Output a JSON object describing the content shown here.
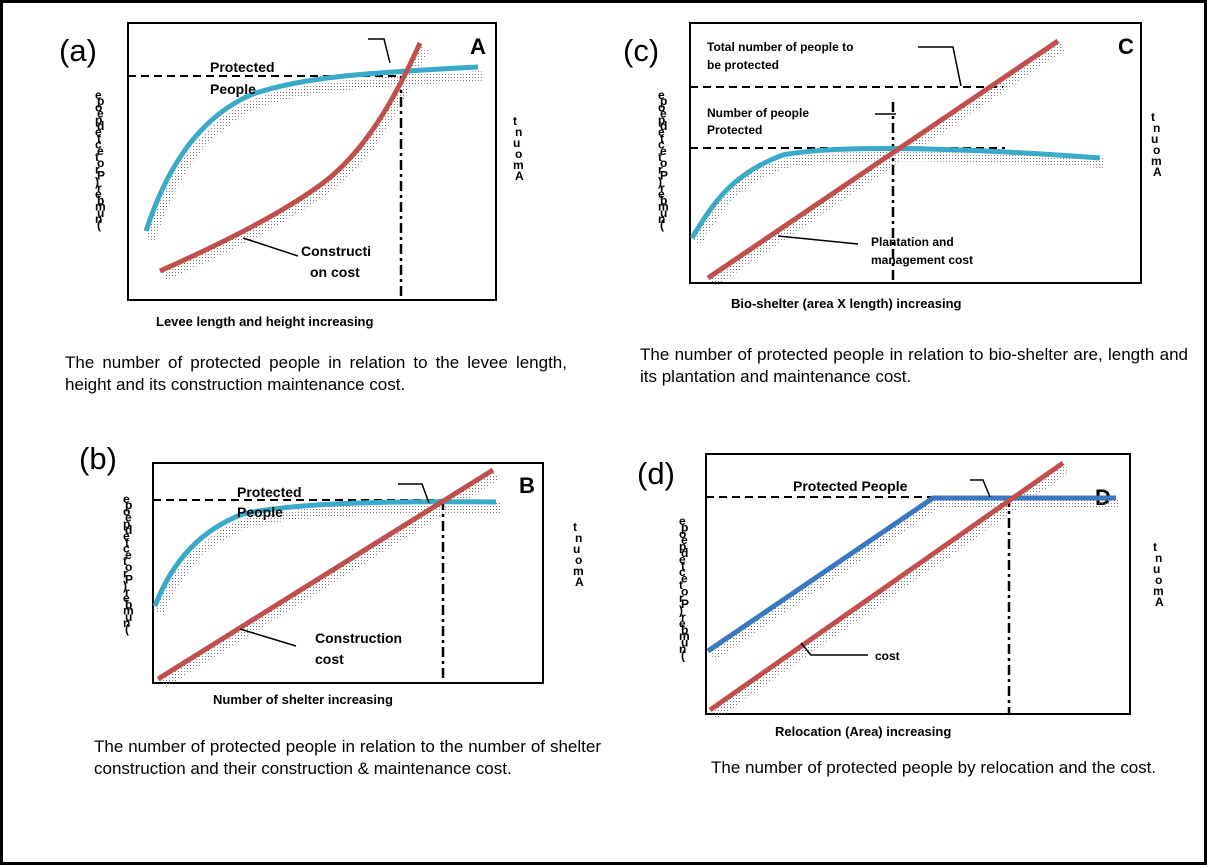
{
  "colors": {
    "people_curve": "#3aaac8",
    "people_line_d": "#3a78c0",
    "cost_line": "#c0504d",
    "ink": "#000000"
  },
  "panels": {
    "a": {
      "label": "(a)",
      "corner": "A",
      "y_axis_left": [
        "e",
        "p",
        "o",
        "e",
        "p",
        "d",
        "e",
        "t",
        "c",
        "e",
        "t",
        "o",
        "r",
        "P",
        ")",
        "r",
        "e",
        "b",
        "m",
        "u",
        "n",
        "("
      ],
      "y_axis_right": [
        "t",
        "n",
        "u",
        "o",
        "m",
        "A"
      ],
      "x_axis": "Levee length and height increasing",
      "people_label": [
        "Protected",
        "People"
      ],
      "cost_label": [
        "Constructi",
        "on cost"
      ],
      "caption": "The number of protected people in relation to the levee length, height and its construction maintenance cost."
    },
    "b": {
      "label": "(b)",
      "corner": "B",
      "y_axis_left": [
        "e",
        "p",
        "o",
        "e",
        "p",
        "d",
        "e",
        "t",
        "c",
        "e",
        "t",
        "o",
        "r",
        "P",
        ")",
        "r",
        "e",
        "b",
        "m",
        "u",
        "n",
        "("
      ],
      "y_axis_right": [
        "t",
        "n",
        "u",
        "o",
        "m",
        "A"
      ],
      "x_axis": "Number of shelter increasing",
      "people_label": [
        "Protected",
        "People"
      ],
      "cost_label": [
        "Construction",
        "cost"
      ],
      "caption": "The number of protected people in relation to the number of shelter construction and their construction & maintenance cost."
    },
    "c": {
      "label": "(c)",
      "corner": "C",
      "y_axis_left": [
        "e",
        "p",
        "o",
        "e",
        "p",
        "d",
        "e",
        "t",
        "c",
        "e",
        "t",
        "o",
        "r",
        "P",
        ")",
        "r",
        "e",
        "b",
        "m",
        "u",
        "n",
        "("
      ],
      "y_axis_right": [
        "t",
        "n",
        "u",
        "o",
        "m",
        "A"
      ],
      "x_axis": "Bio-shelter (area X length) increasing",
      "total_label": [
        "Total number of people to",
        "be protected"
      ],
      "people_label": [
        "Number of people",
        "Protected"
      ],
      "cost_label": [
        "Plantation and",
        "management cost"
      ],
      "caption": "The number of protected people in relation to bio-shelter are, length and its plantation and maintenance cost."
    },
    "d": {
      "label": "(d)",
      "corner": "D",
      "y_axis_left": [
        "e",
        "p",
        "o",
        "e",
        "p",
        "d",
        "e",
        "t",
        "c",
        "e",
        "t",
        "o",
        "r",
        "P",
        ")",
        "r",
        "e",
        "b",
        "m",
        "u",
        "n",
        "("
      ],
      "y_axis_right": [
        "t",
        "n",
        "u",
        "o",
        "m",
        "A"
      ],
      "x_axis": "Relocation (Area) increasing",
      "people_label": [
        "Protected People"
      ],
      "cost_label": [
        "cost"
      ],
      "caption": "The number of protected people by relocation and the cost."
    }
  }
}
